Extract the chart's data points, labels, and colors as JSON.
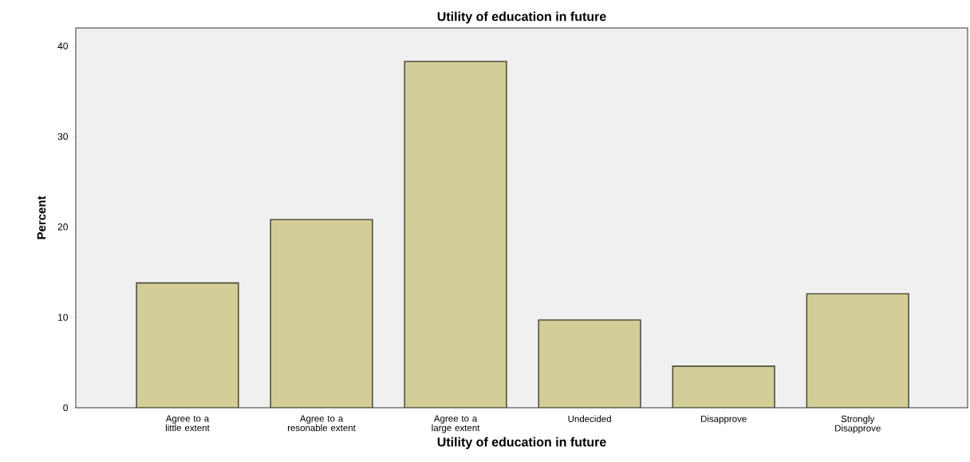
{
  "chart_data": {
    "type": "bar",
    "title": "Utility of education in future",
    "xlabel": "Utility of education in future",
    "ylabel": "Percent",
    "categories": [
      "Agree to a little extent",
      "Agree to a resonable extent",
      "Agree to a large extent",
      "Undecided",
      "Disapprove",
      "Strongly Disapprove"
    ],
    "values": [
      13.8,
      20.8,
      38.3,
      9.7,
      4.6,
      12.6
    ],
    "color": "#d3cd97",
    "ylim": [
      0,
      42
    ],
    "yticks": [
      0,
      10,
      20,
      30,
      40
    ]
  }
}
